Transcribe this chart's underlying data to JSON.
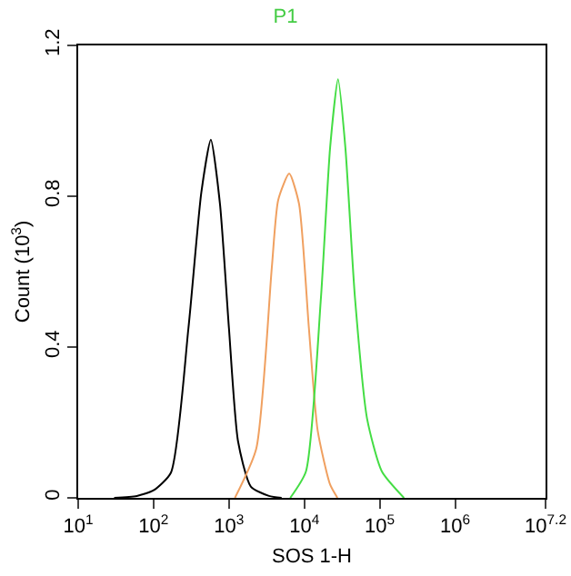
{
  "chart_data": {
    "type": "line",
    "title": "P1",
    "xlabel": "SOS 1-H",
    "ylabel": "Count (10$^{3}$)",
    "log": "x",
    "marker": "none",
    "line_style": "solid",
    "xlim": [
      10,
      15848931.9
    ],
    "xticks": [
      {
        "value": 10,
        "label": "10$^{1}$"
      },
      {
        "value": 100,
        "label": "10$^{2}$"
      },
      {
        "value": 1000,
        "label": "10$^{3}$"
      },
      {
        "value": 10000,
        "label": "10$^{4}$"
      },
      {
        "value": 100000,
        "label": "10$^{5}$"
      },
      {
        "value": 1000000,
        "label": "10$^{6}$"
      },
      {
        "value": 15848931.9,
        "label": "10$^{7.2}$"
      }
    ],
    "ylim": [
      0,
      1.2
    ],
    "yticks": [
      0,
      0.4,
      0.8,
      1.2
    ],
    "series": [
      {
        "color": "#000000",
        "x": [
          30,
          60,
          100,
          170,
          290,
          430,
          575,
          760,
          1000,
          1320,
          1950,
          3400,
          5000
        ],
        "values": [
          0,
          0.005,
          0.02,
          0.067,
          0.45,
          0.81,
          0.95,
          0.78,
          0.45,
          0.15,
          0.03,
          0.005,
          0
        ]
      },
      {
        "color": "#f0a060",
        "x": [
          1200,
          2300,
          3700,
          4500,
          6300,
          8500,
          11500,
          15000,
          22000,
          27500
        ],
        "values": [
          0,
          0.13,
          0.61,
          0.79,
          0.86,
          0.78,
          0.45,
          0.18,
          0.035,
          0
        ]
      },
      {
        "color": "#44dd44",
        "x": [
          6500,
          10500,
          16600,
          22000,
          28000,
          35000,
          47000,
          68000,
          107000,
          210000
        ],
        "values": [
          0,
          0.07,
          0.53,
          0.93,
          1.11,
          0.93,
          0.53,
          0.21,
          0.07,
          0
        ]
      }
    ]
  }
}
